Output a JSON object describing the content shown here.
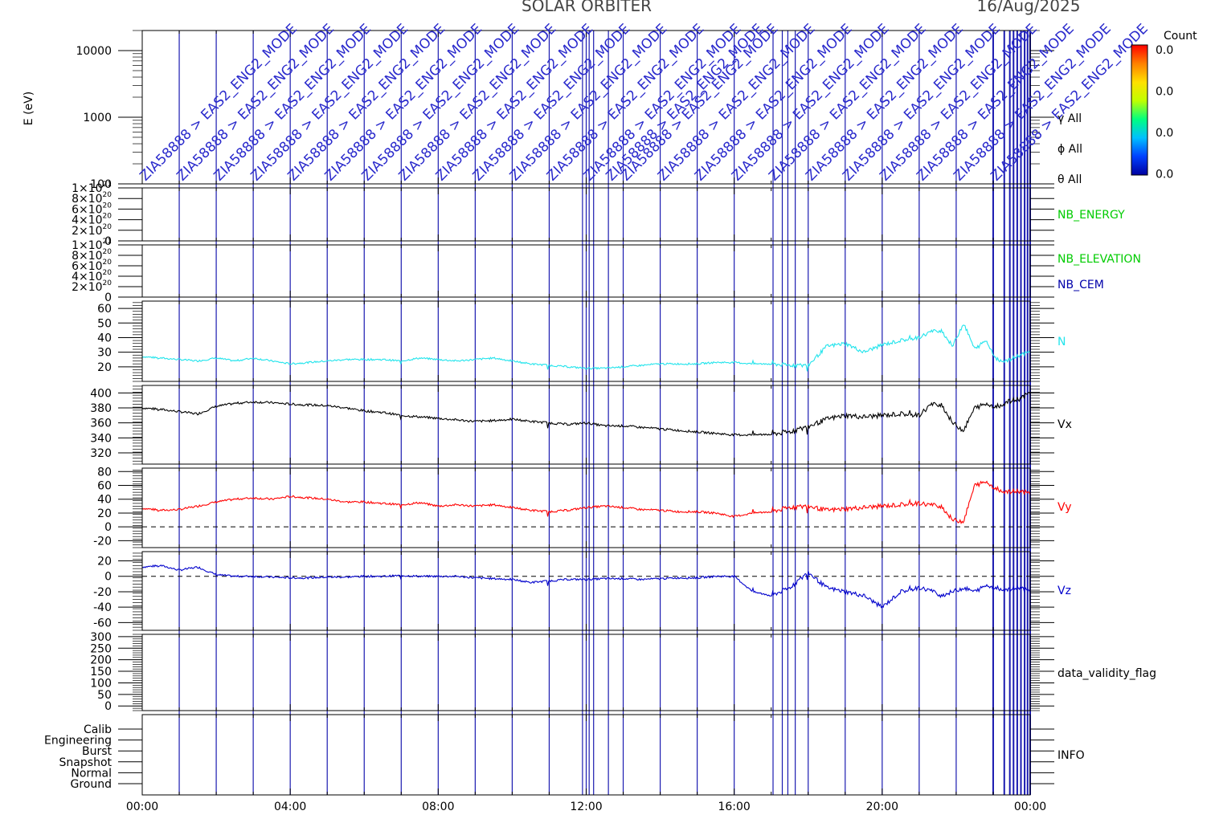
{
  "title": "SOLAR ORBITER",
  "date": "16/Aug/2025",
  "mode_label": "ZIA58888 > EAS2_ENG2_MODE",
  "colorbar": {
    "title": "Count",
    "ticks": [
      "0.0",
      "0.0",
      "0.0",
      "0.0"
    ],
    "colors": [
      "#0000a0",
      "#0040ff",
      "#00c0ff",
      "#00ff80",
      "#c0ff00",
      "#ffe000",
      "#ff8000",
      "#ff0000"
    ]
  },
  "chart_data": [
    {
      "id": "energy",
      "type": "heatmap",
      "ylabel": "E (eV)",
      "yscale": "log",
      "ylim": [
        100,
        20000
      ],
      "yticks": [
        "10000",
        "1000",
        "100"
      ],
      "right_labels": [
        "γ All",
        "ϕ All",
        "θ All"
      ]
    },
    {
      "id": "nb_energy",
      "type": "line",
      "label": "NB_ENERGY",
      "color": "#00cc00",
      "ylim": [
        0,
        1e+21
      ],
      "yticks": [
        {
          "m": "1×10",
          "e": "21"
        },
        {
          "m": "8×10",
          "e": "20"
        },
        {
          "m": "6×10",
          "e": "20"
        },
        {
          "m": "4×10",
          "e": "20"
        },
        {
          "m": "2×10",
          "e": "20"
        },
        {
          "m": "0",
          "e": ""
        }
      ]
    },
    {
      "id": "nb_elevation",
      "type": "line",
      "labels": [
        {
          "text": "NB_ELEVATION",
          "color": "#00cc00"
        },
        {
          "text": "NB_CEM",
          "color": "#0000aa"
        }
      ],
      "ylim": [
        0,
        1e+21
      ],
      "yticks": [
        {
          "m": "1×10",
          "e": "21"
        },
        {
          "m": "8×10",
          "e": "20"
        },
        {
          "m": "6×10",
          "e": "20"
        },
        {
          "m": "4×10",
          "e": "20"
        },
        {
          "m": "2×10",
          "e": "20"
        },
        {
          "m": "0",
          "e": ""
        }
      ]
    },
    {
      "id": "n",
      "type": "line",
      "label": "N",
      "color": "#22e4ec",
      "ylim": [
        10,
        65
      ],
      "yticks": [
        60,
        50,
        40,
        30,
        20
      ],
      "x": [
        0,
        0.5,
        1,
        1.5,
        2,
        2.5,
        3,
        3.5,
        4,
        4.5,
        5,
        5.5,
        6,
        6.5,
        7,
        7.5,
        8,
        8.5,
        9,
        9.5,
        10,
        10.5,
        11,
        11.5,
        12,
        12.5,
        13,
        13.5,
        14,
        14.5,
        15,
        15.5,
        16,
        16.5,
        17,
        17.5,
        18,
        18.5,
        19,
        19.5,
        20,
        20.5,
        21,
        21.3,
        21.6,
        21.9,
        22.2,
        22.5,
        22.8,
        23.1,
        23.4,
        23.7,
        24
      ],
      "y": [
        27,
        26,
        25,
        24,
        26,
        24,
        26,
        24,
        22,
        23,
        24,
        25,
        25,
        25,
        24,
        26,
        25,
        24,
        25,
        26,
        24,
        22,
        21,
        20,
        19,
        19,
        20,
        21,
        22,
        22,
        22,
        23,
        23,
        22,
        22,
        21,
        21,
        34,
        36,
        30,
        35,
        38,
        40,
        44,
        45,
        34,
        50,
        32,
        38,
        25,
        24,
        28,
        30
      ]
    },
    {
      "id": "vx",
      "type": "line",
      "label": "Vx",
      "color": "#000000",
      "ylim": [
        305,
        410
      ],
      "yticks": [
        400,
        380,
        360,
        340,
        320
      ],
      "x": [
        0,
        0.5,
        1,
        1.5,
        2,
        2.5,
        3,
        3.5,
        4,
        4.5,
        5,
        5.5,
        6,
        6.5,
        7,
        7.5,
        8,
        8.5,
        9,
        9.5,
        10,
        10.5,
        11,
        11.5,
        12,
        12.5,
        13,
        13.5,
        14,
        14.5,
        15,
        15.5,
        16,
        16.5,
        17,
        17.5,
        18,
        18.5,
        19,
        19.5,
        20,
        20.5,
        21,
        21.3,
        21.6,
        21.9,
        22.2,
        22.5,
        22.8,
        23.1,
        23.4,
        23.7,
        24
      ],
      "y": [
        380,
        378,
        375,
        372,
        382,
        386,
        388,
        387,
        385,
        384,
        383,
        380,
        376,
        374,
        370,
        368,
        366,
        364,
        362,
        363,
        365,
        362,
        360,
        358,
        360,
        356,
        356,
        354,
        352,
        350,
        348,
        346,
        344,
        344,
        345,
        348,
        355,
        365,
        370,
        368,
        370,
        372,
        370,
        384,
        385,
        360,
        350,
        380,
        385,
        382,
        388,
        392,
        400
      ]
    },
    {
      "id": "vy",
      "type": "line",
      "label": "Vy",
      "color": "#ff0000",
      "ylim": [
        -30,
        85
      ],
      "yticks": [
        80,
        60,
        40,
        20,
        0,
        -20
      ],
      "x": [
        0,
        0.5,
        1,
        1.5,
        2,
        2.5,
        3,
        3.5,
        4,
        4.5,
        5,
        5.5,
        6,
        6.5,
        7,
        7.5,
        8,
        8.5,
        9,
        9.5,
        10,
        10.5,
        11,
        11.5,
        12,
        12.5,
        13,
        13.5,
        14,
        14.5,
        15,
        15.5,
        16,
        16.5,
        17,
        17.5,
        18,
        18.5,
        19,
        19.5,
        20,
        20.5,
        21,
        21.3,
        21.6,
        21.9,
        22.2,
        22.5,
        22.8,
        23.1,
        23.4,
        23.7,
        24
      ],
      "y": [
        27,
        24,
        25,
        30,
        36,
        40,
        42,
        40,
        44,
        42,
        40,
        36,
        36,
        34,
        32,
        35,
        30,
        32,
        30,
        32,
        28,
        24,
        22,
        24,
        28,
        30,
        28,
        25,
        24,
        22,
        22,
        20,
        15,
        20,
        22,
        28,
        30,
        24,
        26,
        28,
        30,
        32,
        34,
        32,
        30,
        10,
        8,
        60,
        65,
        55,
        50,
        52,
        48
      ]
    },
    {
      "id": "vz",
      "type": "line",
      "label": "Vz",
      "color": "#0000cc",
      "ylim": [
        -70,
        32
      ],
      "yticks": [
        20,
        0,
        -20,
        -40,
        -60
      ],
      "x": [
        0,
        0.5,
        1,
        1.5,
        2,
        2.5,
        3,
        3.5,
        4,
        4.5,
        5,
        5.5,
        6,
        6.5,
        7,
        7.5,
        8,
        8.5,
        9,
        9.5,
        10,
        10.5,
        11,
        11.5,
        12,
        12.5,
        13,
        13.5,
        14,
        14.5,
        15,
        15.5,
        16,
        16.5,
        17,
        17.5,
        18,
        18.5,
        19,
        19.5,
        20,
        20.5,
        21,
        21.3,
        21.6,
        21.9,
        22.2,
        22.5,
        22.8,
        23.1,
        23.4,
        23.7,
        24
      ],
      "y": [
        12,
        14,
        8,
        12,
        2,
        0,
        0,
        -1,
        -2,
        -2,
        -1,
        -1,
        0,
        0,
        1,
        0,
        0,
        0,
        -2,
        -3,
        -4,
        -8,
        -6,
        -4,
        -4,
        -3,
        -3,
        -4,
        -3,
        -2,
        -2,
        0,
        0,
        -20,
        -25,
        -15,
        5,
        -15,
        -20,
        -25,
        -40,
        -20,
        -15,
        -18,
        -25,
        -20,
        -15,
        -20,
        -12,
        -15,
        -18,
        -14,
        -20
      ]
    },
    {
      "id": "validity",
      "type": "line",
      "label": "data_validity_flag",
      "ylim": [
        -20,
        310
      ],
      "yticks": [
        300,
        250,
        200,
        150,
        100,
        50,
        0
      ]
    },
    {
      "id": "info",
      "type": "line",
      "label": "INFO",
      "yticks": [
        "Calib",
        "Engineering",
        "Burst",
        "Snapshot",
        "Normal",
        "Ground"
      ]
    }
  ],
  "x_axis": {
    "unit": "hours",
    "xlim": [
      0,
      24
    ],
    "ticks": [
      "00:00",
      "04:00",
      "08:00",
      "12:00",
      "16:00",
      "20:00",
      "00:00"
    ]
  },
  "mode_lines": [
    1,
    2,
    3,
    4,
    5,
    6,
    7,
    8,
    9,
    10,
    11,
    11.9,
    12,
    12.08,
    12.2,
    12.6,
    13,
    14,
    15,
    16,
    17.05,
    17.3,
    17.45,
    17.65,
    18,
    19,
    20,
    21,
    22,
    23,
    23.3,
    23.45,
    23.55,
    23.65,
    23.75,
    23.85,
    23.93,
    24
  ]
}
